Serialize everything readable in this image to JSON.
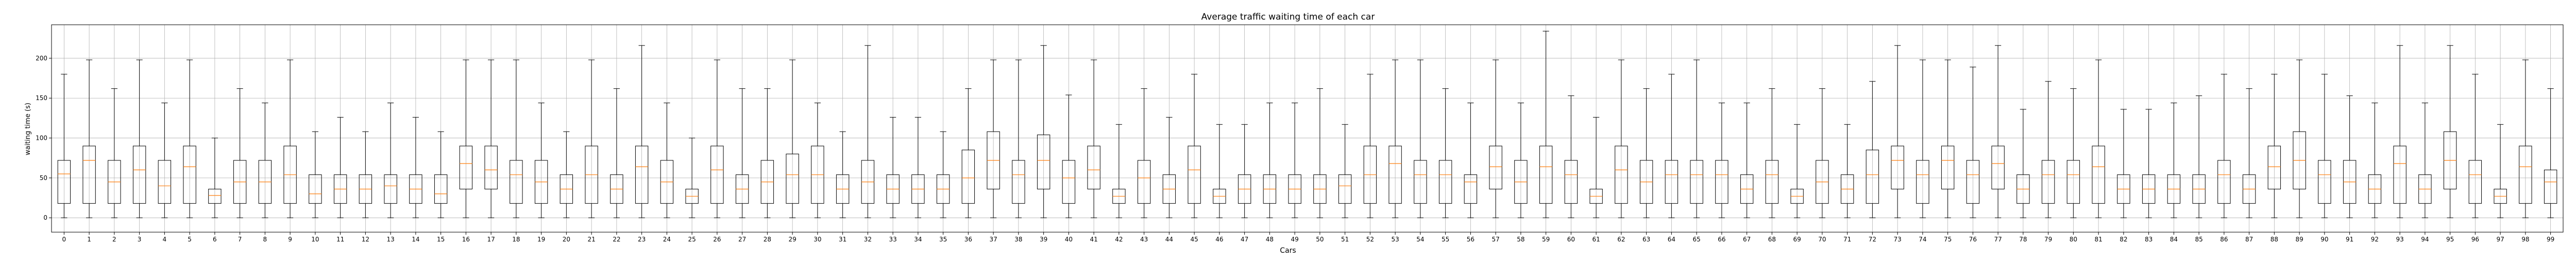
{
  "chart_data": {
    "type": "boxplot",
    "title": "Average traffic waiting time of each car",
    "xlabel": "Cars",
    "ylabel": "waiting time (s)",
    "ylim": [
      -18,
      242
    ],
    "yticks": [
      0,
      50,
      100,
      150,
      200
    ],
    "grid": true,
    "colors": {
      "box": "#000000",
      "median": "#ff7f0e",
      "grid": "#b0b0b0"
    },
    "categories": [
      "0",
      "1",
      "2",
      "3",
      "4",
      "5",
      "6",
      "7",
      "8",
      "9",
      "10",
      "11",
      "12",
      "13",
      "14",
      "15",
      "16",
      "17",
      "18",
      "19",
      "20",
      "21",
      "22",
      "23",
      "24",
      "25",
      "26",
      "27",
      "28",
      "29",
      "30",
      "31",
      "32",
      "33",
      "34",
      "35",
      "36",
      "37",
      "38",
      "39",
      "40",
      "41",
      "42",
      "43",
      "44",
      "45",
      "46",
      "47",
      "48",
      "49",
      "50",
      "51",
      "52",
      "53",
      "54",
      "55",
      "56",
      "57",
      "58",
      "59",
      "60",
      "61",
      "62",
      "63",
      "64",
      "65",
      "66",
      "67",
      "68",
      "69",
      "70",
      "71",
      "72",
      "73",
      "74",
      "75",
      "76",
      "77",
      "78",
      "79",
      "80",
      "81",
      "82",
      "83",
      "84",
      "85",
      "86",
      "87",
      "88",
      "89",
      "90",
      "91",
      "92",
      "93",
      "94",
      "95",
      "96",
      "97",
      "98",
      "99"
    ],
    "boxes": [
      {
        "min": 0,
        "q1": 18,
        "median": 55,
        "q3": 72,
        "max": 180
      },
      {
        "min": 0,
        "q1": 18,
        "median": 72,
        "q3": 90,
        "max": 198
      },
      {
        "min": 0,
        "q1": 18,
        "median": 45,
        "q3": 72,
        "max": 162
      },
      {
        "min": 0,
        "q1": 18,
        "median": 60,
        "q3": 90,
        "max": 198
      },
      {
        "min": 0,
        "q1": 18,
        "median": 40,
        "q3": 72,
        "max": 144
      },
      {
        "min": 0,
        "q1": 18,
        "median": 64,
        "q3": 90,
        "max": 198
      },
      {
        "min": 0,
        "q1": 18,
        "median": 28,
        "q3": 36,
        "max": 100
      },
      {
        "min": 0,
        "q1": 18,
        "median": 45,
        "q3": 72,
        "max": 162
      },
      {
        "min": 0,
        "q1": 18,
        "median": 45,
        "q3": 72,
        "max": 144
      },
      {
        "min": 0,
        "q1": 18,
        "median": 54,
        "q3": 90,
        "max": 198
      },
      {
        "min": 0,
        "q1": 18,
        "median": 30,
        "q3": 54,
        "max": 108
      },
      {
        "min": 0,
        "q1": 18,
        "median": 36,
        "q3": 54,
        "max": 126
      },
      {
        "min": 0,
        "q1": 18,
        "median": 36,
        "q3": 54,
        "max": 108
      },
      {
        "min": 0,
        "q1": 18,
        "median": 40,
        "q3": 54,
        "max": 144
      },
      {
        "min": 0,
        "q1": 18,
        "median": 36,
        "q3": 54,
        "max": 126
      },
      {
        "min": 0,
        "q1": 18,
        "median": 30,
        "q3": 54,
        "max": 108
      },
      {
        "min": 0,
        "q1": 36,
        "median": 68,
        "q3": 90,
        "max": 198
      },
      {
        "min": 0,
        "q1": 36,
        "median": 60,
        "q3": 90,
        "max": 198
      },
      {
        "min": 0,
        "q1": 18,
        "median": 54,
        "q3": 72,
        "max": 198
      },
      {
        "min": 0,
        "q1": 18,
        "median": 45,
        "q3": 72,
        "max": 144
      },
      {
        "min": 0,
        "q1": 18,
        "median": 36,
        "q3": 54,
        "max": 108
      },
      {
        "min": 0,
        "q1": 18,
        "median": 54,
        "q3": 90,
        "max": 198
      },
      {
        "min": 0,
        "q1": 18,
        "median": 36,
        "q3": 54,
        "max": 162
      },
      {
        "min": 0,
        "q1": 18,
        "median": 64,
        "q3": 90,
        "max": 216
      },
      {
        "min": 0,
        "q1": 18,
        "median": 45,
        "q3": 72,
        "max": 144
      },
      {
        "min": 0,
        "q1": 18,
        "median": 27,
        "q3": 36,
        "max": 100
      },
      {
        "min": 0,
        "q1": 18,
        "median": 60,
        "q3": 90,
        "max": 198
      },
      {
        "min": 0,
        "q1": 18,
        "median": 36,
        "q3": 54,
        "max": 162
      },
      {
        "min": 0,
        "q1": 18,
        "median": 45,
        "q3": 72,
        "max": 162
      },
      {
        "min": 0,
        "q1": 18,
        "median": 54,
        "q3": 80,
        "max": 198
      },
      {
        "min": 0,
        "q1": 18,
        "median": 54,
        "q3": 90,
        "max": 144
      },
      {
        "min": 0,
        "q1": 18,
        "median": 36,
        "q3": 54,
        "max": 108
      },
      {
        "min": 0,
        "q1": 18,
        "median": 45,
        "q3": 72,
        "max": 216
      },
      {
        "min": 0,
        "q1": 18,
        "median": 36,
        "q3": 54,
        "max": 126
      },
      {
        "min": 0,
        "q1": 18,
        "median": 36,
        "q3": 54,
        "max": 126
      },
      {
        "min": 0,
        "q1": 18,
        "median": 36,
        "q3": 54,
        "max": 108
      },
      {
        "min": 0,
        "q1": 18,
        "median": 50,
        "q3": 85,
        "max": 162
      },
      {
        "min": 0,
        "q1": 36,
        "median": 72,
        "q3": 108,
        "max": 198
      },
      {
        "min": 0,
        "q1": 18,
        "median": 54,
        "q3": 72,
        "max": 198
      },
      {
        "min": 0,
        "q1": 36,
        "median": 72,
        "q3": 104,
        "max": 216
      },
      {
        "min": 0,
        "q1": 18,
        "median": 50,
        "q3": 72,
        "max": 154
      },
      {
        "min": 0,
        "q1": 36,
        "median": 60,
        "q3": 90,
        "max": 198
      },
      {
        "min": 0,
        "q1": 18,
        "median": 27,
        "q3": 36,
        "max": 117
      },
      {
        "min": 0,
        "q1": 18,
        "median": 50,
        "q3": 72,
        "max": 162
      },
      {
        "min": 0,
        "q1": 18,
        "median": 36,
        "q3": 54,
        "max": 126
      },
      {
        "min": 0,
        "q1": 18,
        "median": 60,
        "q3": 90,
        "max": 180
      },
      {
        "min": 0,
        "q1": 18,
        "median": 27,
        "q3": 36,
        "max": 117
      },
      {
        "min": 0,
        "q1": 18,
        "median": 36,
        "q3": 54,
        "max": 117
      },
      {
        "min": 0,
        "q1": 18,
        "median": 36,
        "q3": 54,
        "max": 144
      },
      {
        "min": 0,
        "q1": 18,
        "median": 36,
        "q3": 54,
        "max": 144
      },
      {
        "min": 0,
        "q1": 18,
        "median": 36,
        "q3": 54,
        "max": 162
      },
      {
        "min": 0,
        "q1": 18,
        "median": 40,
        "q3": 54,
        "max": 117
      },
      {
        "min": 0,
        "q1": 18,
        "median": 54,
        "q3": 90,
        "max": 180
      },
      {
        "min": 0,
        "q1": 18,
        "median": 68,
        "q3": 90,
        "max": 198
      },
      {
        "min": 0,
        "q1": 18,
        "median": 54,
        "q3": 72,
        "max": 198
      },
      {
        "min": 0,
        "q1": 18,
        "median": 54,
        "q3": 72,
        "max": 162
      },
      {
        "min": 0,
        "q1": 18,
        "median": 45,
        "q3": 54,
        "max": 144
      },
      {
        "min": 0,
        "q1": 36,
        "median": 64,
        "q3": 90,
        "max": 198
      },
      {
        "min": 0,
        "q1": 18,
        "median": 45,
        "q3": 72,
        "max": 144
      },
      {
        "min": 0,
        "q1": 18,
        "median": 64,
        "q3": 90,
        "max": 234
      },
      {
        "min": 0,
        "q1": 18,
        "median": 54,
        "q3": 72,
        "max": 153
      },
      {
        "min": 0,
        "q1": 18,
        "median": 27,
        "q3": 36,
        "max": 126
      },
      {
        "min": 0,
        "q1": 18,
        "median": 60,
        "q3": 90,
        "max": 198
      },
      {
        "min": 0,
        "q1": 18,
        "median": 45,
        "q3": 72,
        "max": 162
      },
      {
        "min": 0,
        "q1": 18,
        "median": 54,
        "q3": 72,
        "max": 180
      },
      {
        "min": 0,
        "q1": 18,
        "median": 54,
        "q3": 72,
        "max": 198
      },
      {
        "min": 0,
        "q1": 18,
        "median": 54,
        "q3": 72,
        "max": 144
      },
      {
        "min": 0,
        "q1": 18,
        "median": 36,
        "q3": 54,
        "max": 144
      },
      {
        "min": 0,
        "q1": 18,
        "median": 54,
        "q3": 72,
        "max": 162
      },
      {
        "min": 0,
        "q1": 18,
        "median": 27,
        "q3": 36,
        "max": 117
      },
      {
        "min": 0,
        "q1": 18,
        "median": 45,
        "q3": 72,
        "max": 162
      },
      {
        "min": 0,
        "q1": 18,
        "median": 36,
        "q3": 54,
        "max": 117
      },
      {
        "min": 0,
        "q1": 18,
        "median": 54,
        "q3": 85,
        "max": 171
      },
      {
        "min": 0,
        "q1": 36,
        "median": 72,
        "q3": 90,
        "max": 216
      },
      {
        "min": 0,
        "q1": 18,
        "median": 54,
        "q3": 72,
        "max": 198
      },
      {
        "min": 0,
        "q1": 36,
        "median": 72,
        "q3": 90,
        "max": 198
      },
      {
        "min": 0,
        "q1": 18,
        "median": 54,
        "q3": 72,
        "max": 189
      },
      {
        "min": 0,
        "q1": 36,
        "median": 68,
        "q3": 90,
        "max": 216
      },
      {
        "min": 0,
        "q1": 18,
        "median": 36,
        "q3": 54,
        "max": 136
      },
      {
        "min": 0,
        "q1": 18,
        "median": 54,
        "q3": 72,
        "max": 171
      },
      {
        "min": 0,
        "q1": 18,
        "median": 54,
        "q3": 72,
        "max": 162
      },
      {
        "min": 0,
        "q1": 18,
        "median": 64,
        "q3": 90,
        "max": 198
      },
      {
        "min": 0,
        "q1": 18,
        "median": 36,
        "q3": 54,
        "max": 136
      },
      {
        "min": 0,
        "q1": 18,
        "median": 36,
        "q3": 54,
        "max": 136
      },
      {
        "min": 0,
        "q1": 18,
        "median": 36,
        "q3": 54,
        "max": 144
      },
      {
        "min": 0,
        "q1": 18,
        "median": 36,
        "q3": 54,
        "max": 153
      },
      {
        "min": 0,
        "q1": 18,
        "median": 54,
        "q3": 72,
        "max": 180
      },
      {
        "min": 0,
        "q1": 18,
        "median": 36,
        "q3": 54,
        "max": 162
      },
      {
        "min": 0,
        "q1": 36,
        "median": 64,
        "q3": 90,
        "max": 180
      },
      {
        "min": 0,
        "q1": 36,
        "median": 72,
        "q3": 108,
        "max": 198
      },
      {
        "min": 0,
        "q1": 18,
        "median": 54,
        "q3": 72,
        "max": 180
      },
      {
        "min": 0,
        "q1": 18,
        "median": 45,
        "q3": 72,
        "max": 153
      },
      {
        "min": 0,
        "q1": 18,
        "median": 36,
        "q3": 54,
        "max": 144
      },
      {
        "min": 0,
        "q1": 18,
        "median": 68,
        "q3": 90,
        "max": 216
      },
      {
        "min": 0,
        "q1": 18,
        "median": 36,
        "q3": 54,
        "max": 144
      },
      {
        "min": 0,
        "q1": 36,
        "median": 72,
        "q3": 108,
        "max": 216
      },
      {
        "min": 0,
        "q1": 18,
        "median": 54,
        "q3": 72,
        "max": 180
      },
      {
        "min": 0,
        "q1": 18,
        "median": 27,
        "q3": 36,
        "max": 117
      },
      {
        "min": 0,
        "q1": 18,
        "median": 64,
        "q3": 90,
        "max": 198
      },
      {
        "min": 0,
        "q1": 18,
        "median": 45,
        "q3": 60,
        "max": 162
      }
    ]
  }
}
